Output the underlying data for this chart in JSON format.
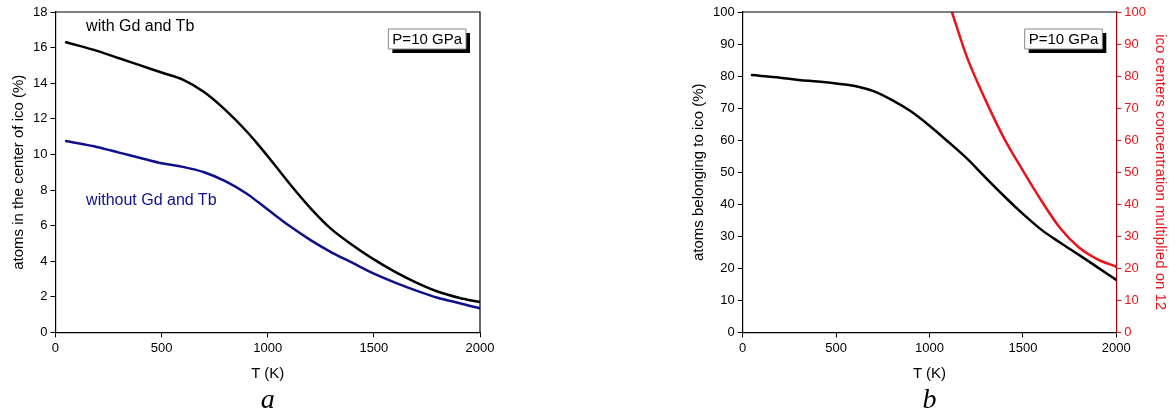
{
  "chart_data": [
    {
      "type": "line",
      "xlabel": "T (K)",
      "ylabel": "atoms in the center of ico (%)",
      "xlim": [
        0,
        2000
      ],
      "xticks": [
        0,
        500,
        1000,
        1500,
        2000
      ],
      "ylim": [
        0,
        18
      ],
      "yticks": [
        0,
        2,
        4,
        6,
        8,
        10,
        12,
        14,
        16,
        18
      ],
      "legend": false,
      "grid": false,
      "marker": "none",
      "annotations": [
        "P=10 GPa",
        "a"
      ],
      "x": [
        50,
        200,
        300,
        400,
        500,
        600,
        700,
        800,
        900,
        1000,
        1100,
        1200,
        1300,
        1400,
        1500,
        1600,
        1700,
        1800,
        1900,
        2000
      ],
      "series": [
        {
          "name": "with Gd and Tb",
          "color": "#000000",
          "values": [
            16.3,
            15.8,
            15.4,
            15.0,
            14.6,
            14.2,
            13.5,
            12.5,
            11.3,
            9.9,
            8.4,
            7.0,
            5.8,
            4.9,
            4.1,
            3.4,
            2.8,
            2.3,
            1.95,
            1.7
          ]
        },
        {
          "name": "without Gd and Tb",
          "color": "#10108a",
          "values": [
            10.75,
            10.4,
            10.1,
            9.8,
            9.5,
            9.3,
            9.0,
            8.5,
            7.8,
            6.9,
            6.0,
            5.2,
            4.5,
            3.9,
            3.3,
            2.8,
            2.35,
            1.95,
            1.65,
            1.35
          ]
        }
      ]
    },
    {
      "type": "line",
      "xlabel": "T (K)",
      "ylabel": "atoms belonging to ico (%)",
      "y2label": "ico centers concentration multiplied on 12",
      "xlim": [
        0,
        2000
      ],
      "xticks": [
        0,
        500,
        1000,
        1500,
        2000
      ],
      "ylim": [
        0,
        100
      ],
      "yticks": [
        0,
        10,
        20,
        30,
        40,
        50,
        60,
        70,
        80,
        90,
        100
      ],
      "y2lim": [
        0,
        100
      ],
      "y2ticks": [
        0,
        10,
        20,
        30,
        40,
        50,
        60,
        70,
        80,
        90,
        100
      ],
      "legend": false,
      "grid": false,
      "marker": "none",
      "annotations": [
        "P=10 GPa",
        "b"
      ],
      "series": [
        {
          "color": "#000000",
          "x": [
            50,
            200,
            300,
            400,
            500,
            600,
            700,
            800,
            900,
            1000,
            1100,
            1200,
            1300,
            1400,
            1500,
            1600,
            1700,
            1800,
            1900,
            2000
          ],
          "values": [
            80.3,
            79.5,
            78.8,
            78.3,
            77.7,
            76.9,
            75.3,
            72.5,
            69.0,
            64.5,
            59.5,
            54.3,
            48.3,
            42.5,
            37.0,
            32.0,
            28.0,
            24.2,
            20.3,
            16.4
          ]
        },
        {
          "color": "#e8141c",
          "axis": "y2",
          "x": [
            1120,
            1200,
            1300,
            1400,
            1500,
            1600,
            1700,
            1800,
            1900,
            2000
          ],
          "values": [
            100,
            86,
            72.5,
            60.5,
            50.5,
            41,
            32.5,
            26.5,
            22.8,
            20.5
          ]
        }
      ]
    }
  ]
}
